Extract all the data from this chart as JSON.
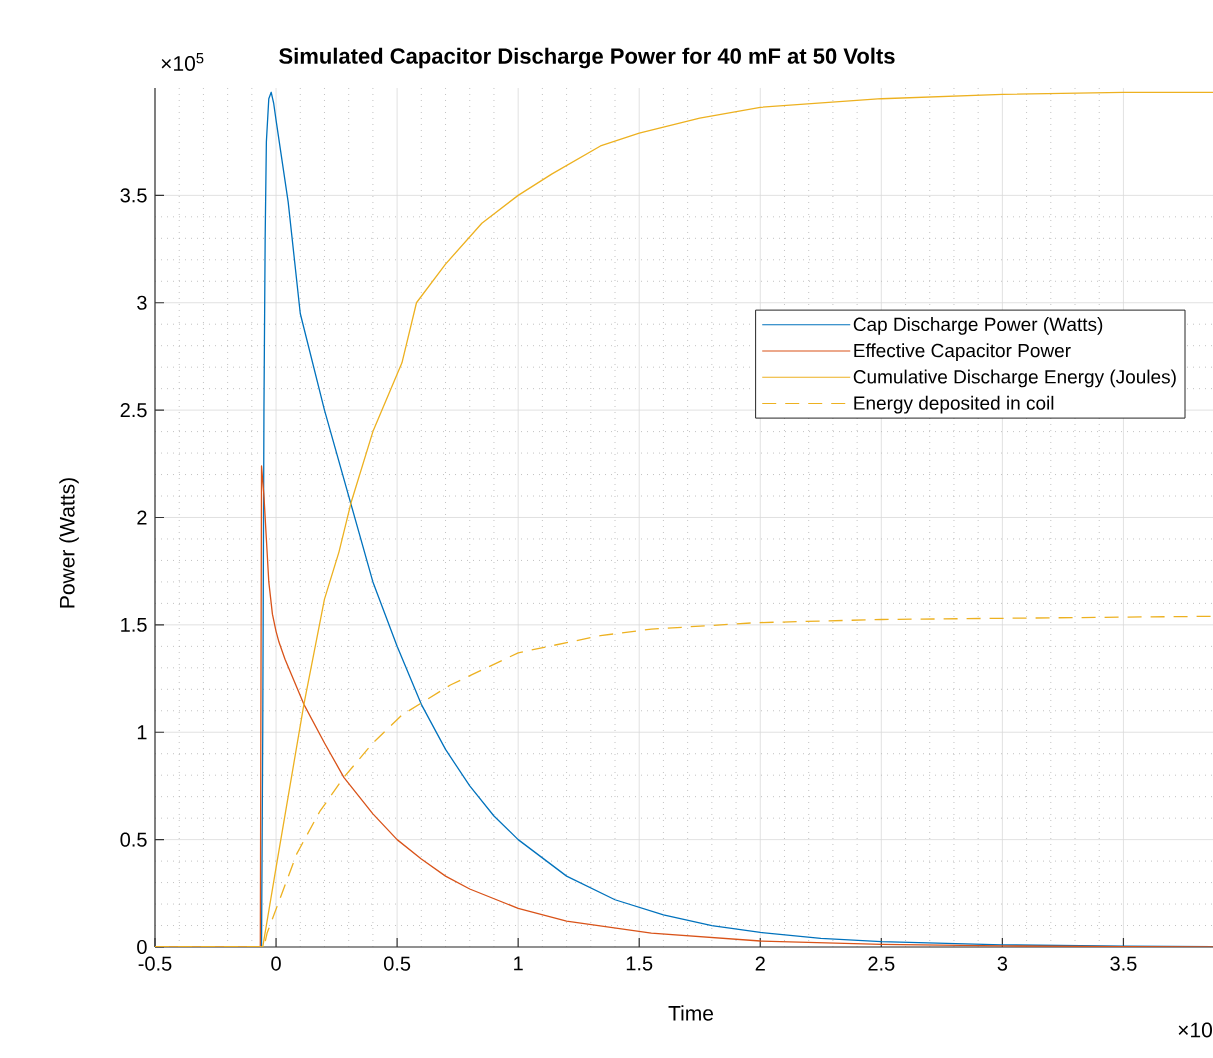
{
  "chart_data": {
    "type": "line",
    "title": "Simulated Capacitor Discharge Power for 40 mF at 50 Volts",
    "xlabel": "Time",
    "ylabel": "Power (Watts)",
    "annotations": [
      "×10$^{5}$",
      "×10"
    ],
    "xlim": [
      -0.5,
      3.87
    ],
    "ylim": [
      0,
      4.0
    ],
    "xticks": [
      -0.5,
      0,
      0.5,
      1,
      1.5,
      2,
      2.5,
      3,
      3.5
    ],
    "yticks": [
      0,
      0.5,
      1,
      1.5,
      2,
      2.5,
      3,
      3.5
    ],
    "grid": true,
    "legend": "right",
    "series": [
      {
        "name": "Cap Discharge Power (Watts)",
        "color": "#0072bd",
        "line_style": "solid",
        "x": [
          -0.5,
          -0.06,
          -0.055,
          -0.05,
          -0.045,
          -0.04,
          -0.03,
          -0.02,
          -0.01,
          0,
          0.05,
          0.1,
          0.2,
          0.3,
          0.4,
          0.5,
          0.6,
          0.7,
          0.8,
          0.9,
          1.0,
          1.2,
          1.4,
          1.6,
          1.8,
          2.0,
          2.25,
          2.5,
          3.0,
          3.5,
          3.87
        ],
        "values": [
          0,
          0,
          1.0,
          2.5,
          3.3,
          3.75,
          3.95,
          3.98,
          3.93,
          3.85,
          3.47,
          2.95,
          2.5,
          2.1,
          1.7,
          1.4,
          1.13,
          0.92,
          0.75,
          0.61,
          0.5,
          0.33,
          0.22,
          0.15,
          0.1,
          0.068,
          0.04,
          0.025,
          0.01,
          0.004,
          0.002
        ]
      },
      {
        "name": "Effective Capacitor Power",
        "color": "#d95319",
        "line_style": "solid",
        "x": [
          -0.5,
          -0.065,
          -0.06,
          -0.05,
          -0.04,
          -0.03,
          -0.015,
          0,
          0.012,
          0.037,
          0.115,
          0.2,
          0.28,
          0.4,
          0.5,
          0.6,
          0.7,
          0.8,
          1.0,
          1.2,
          1.55,
          2.0,
          2.5,
          3.0,
          3.5,
          3.87
        ],
        "values": [
          0,
          0,
          2.24,
          2.1,
          1.9,
          1.7,
          1.55,
          1.47,
          1.42,
          1.34,
          1.13,
          0.95,
          0.79,
          0.62,
          0.5,
          0.41,
          0.33,
          0.27,
          0.18,
          0.12,
          0.065,
          0.028,
          0.012,
          0.005,
          0.002,
          0.001
        ]
      },
      {
        "name": "Cumulative Discharge Energy (Joules)",
        "color": "#edb120",
        "line_style": "solid",
        "x": [
          -0.5,
          -0.055,
          0,
          0.115,
          0.2,
          0.26,
          0.31,
          0.4,
          0.52,
          0.58,
          0.7,
          0.85,
          1.0,
          1.14,
          1.34,
          1.5,
          1.75,
          2.0,
          2.5,
          3.0,
          3.5,
          3.87
        ],
        "values": [
          0,
          0,
          0.37,
          1.13,
          1.62,
          1.84,
          2.07,
          2.4,
          2.72,
          3.0,
          3.18,
          3.37,
          3.5,
          3.6,
          3.73,
          3.79,
          3.86,
          3.91,
          3.95,
          3.97,
          3.98,
          3.98
        ]
      },
      {
        "name": "Energy deposited in coil",
        "color": "#edb120",
        "line_style": "dashed",
        "x": [
          -0.5,
          -0.05,
          -0.037,
          0.086,
          0.18,
          0.28,
          0.4,
          0.52,
          0.72,
          1.0,
          1.34,
          1.55,
          1.98,
          2.5,
          2.95,
          3.87
        ],
        "values": [
          0,
          0,
          0.065,
          0.435,
          0.63,
          0.79,
          0.95,
          1.08,
          1.22,
          1.37,
          1.45,
          1.48,
          1.51,
          1.525,
          1.53,
          1.54
        ]
      }
    ]
  }
}
